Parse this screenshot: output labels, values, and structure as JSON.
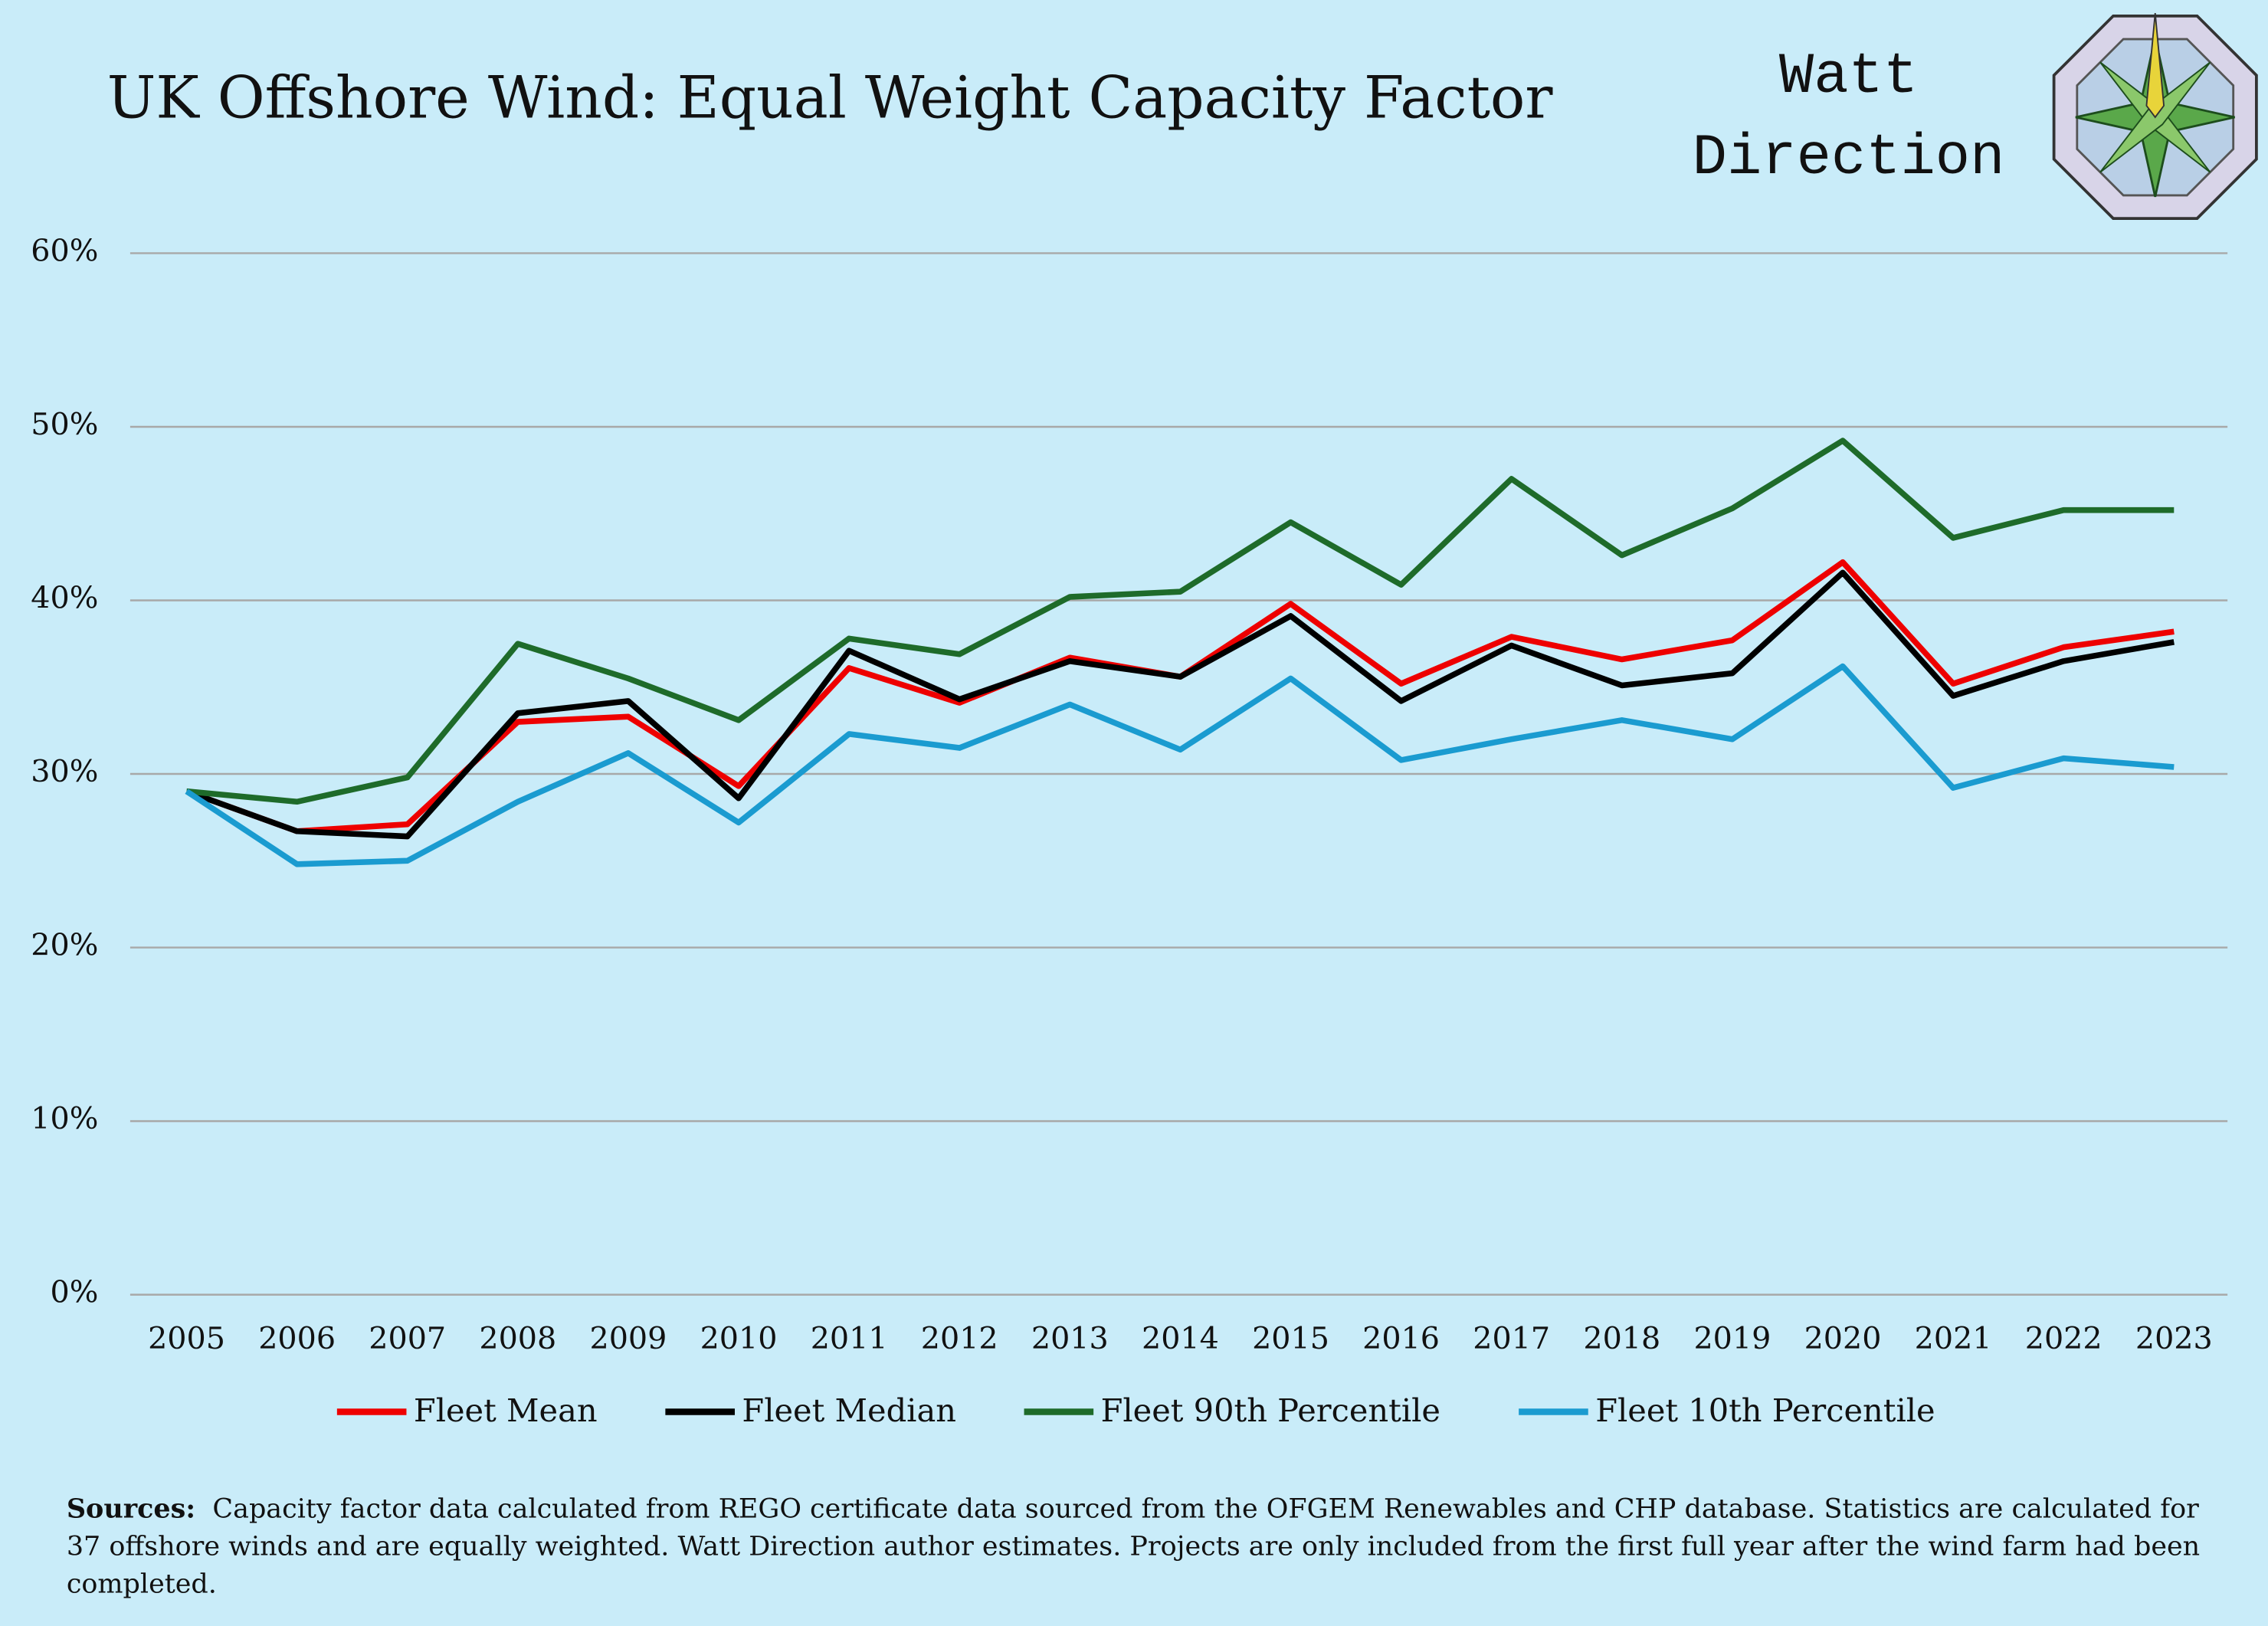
{
  "brand": [
    "Watt",
    "Direction"
  ],
  "chart_data": {
    "type": "line",
    "title": "UK Offshore Wind: Equal Weight Capacity Factor",
    "categories": [
      "2005",
      "2006",
      "2007",
      "2008",
      "2009",
      "2010",
      "2011",
      "2012",
      "2013",
      "2014",
      "2015",
      "2016",
      "2017",
      "2018",
      "2019",
      "2020",
      "2021",
      "2022",
      "2023"
    ],
    "series": [
      {
        "name": "Fleet Mean",
        "color": "#ee0000",
        "values": [
          29.0,
          26.7,
          27.1,
          33.0,
          33.3,
          29.3,
          36.1,
          34.1,
          36.7,
          35.6,
          39.8,
          35.2,
          37.9,
          36.6,
          37.7,
          42.2,
          35.2,
          37.3,
          38.2
        ]
      },
      {
        "name": "Fleet Median",
        "color": "#000000",
        "values": [
          29.0,
          26.7,
          26.4,
          33.5,
          34.2,
          28.6,
          37.1,
          34.3,
          36.5,
          35.6,
          39.1,
          34.2,
          37.4,
          35.1,
          35.8,
          41.6,
          34.5,
          36.5,
          37.6
        ]
      },
      {
        "name": "Fleet 90th Percentile",
        "color": "#1e6b2a",
        "values": [
          29.0,
          28.4,
          29.8,
          37.5,
          35.5,
          33.1,
          37.8,
          36.9,
          40.2,
          40.5,
          44.5,
          40.9,
          47.0,
          42.6,
          45.3,
          49.2,
          43.6,
          45.2,
          45.2
        ]
      },
      {
        "name": "Fleet 10th Percentile",
        "color": "#1a9bd0",
        "values": [
          29.0,
          24.8,
          25.0,
          28.4,
          31.2,
          27.2,
          32.3,
          31.5,
          34.0,
          31.4,
          35.5,
          30.8,
          32.0,
          33.1,
          32.0,
          36.2,
          29.2,
          30.9,
          30.4
        ]
      }
    ],
    "ylim": [
      0,
      60
    ],
    "yticks": [
      {
        "value": 0,
        "label": "0%"
      },
      {
        "value": 10,
        "label": "10%"
      },
      {
        "value": 20,
        "label": "20%"
      },
      {
        "value": 30,
        "label": "30%"
      },
      {
        "value": 40,
        "label": "40%"
      },
      {
        "value": 50,
        "label": "50%"
      },
      {
        "value": 60,
        "label": "60%"
      }
    ],
    "grid": true,
    "legend": "bottom"
  },
  "sources": {
    "label": "Sources:",
    "text": "Capacity factor data calculated from REGO certificate data sourced from the OFGEM Renewables and CHP database. Statistics are calculated for 37 offshore winds and are equally weighted.  Watt Direction author estimates. Projects are only included from the first full year after the wind farm had been completed."
  }
}
